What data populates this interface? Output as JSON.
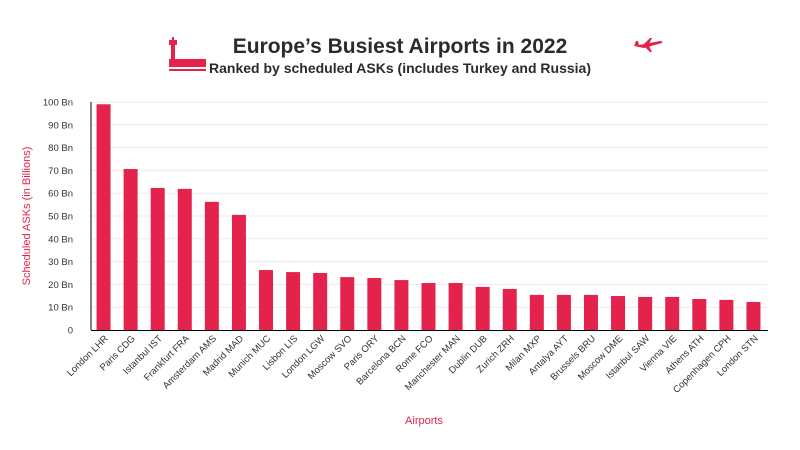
{
  "header": {
    "title": "Europe’s Busiest Airports in 2022",
    "subtitle": "Ranked by scheduled ASKs (includes Turkey and Russia)",
    "icons": [
      "control-tower-icon",
      "airplane-icon"
    ]
  },
  "chart_data": {
    "type": "bar",
    "title": "Europe’s Busiest Airports in 2022",
    "subtitle": "Ranked by scheduled ASKs (includes Turkey and Russia)",
    "xlabel": "Airports",
    "ylabel": "Scheduled ASKs (in Billions)",
    "ylim": [
      0,
      100
    ],
    "yticks": [
      "0",
      "10 Bn",
      "20 Bn",
      "30 Bn",
      "40 Bn",
      "50 Bn",
      "60 Bn",
      "70 Bn",
      "80 Bn",
      "90 Bn",
      "100 Bn"
    ],
    "grid": true,
    "color": "#e3234c",
    "categories": [
      "London LHR",
      "Paris CDG",
      "Istanbul IST",
      "Frankfurt FRA",
      "Amsterdam AMS",
      "Madrid MAD",
      "Munich MUC",
      "Lisbon LIS",
      "London LGW",
      "Moscow SVO",
      "Paris ORY",
      "Barcelona BCN",
      "Rome FCO",
      "Manchester MAN",
      "Dublin DUB",
      "Zurich ZRH",
      "Milan MXP",
      "Antalya AYT",
      "Brussels BRU",
      "Moscow DME",
      "Istanbul SAW",
      "Vienna VIE",
      "Athens ATH",
      "Copenhagen CPH",
      "London STN"
    ],
    "values": [
      99.0,
      70.6,
      62.3,
      61.9,
      56.2,
      50.5,
      26.3,
      25.4,
      25.0,
      23.2,
      22.8,
      21.9,
      20.6,
      20.6,
      18.9,
      18.0,
      15.4,
      15.4,
      15.4,
      14.9,
      14.5,
      14.5,
      13.6,
      13.2,
      12.3
    ]
  }
}
